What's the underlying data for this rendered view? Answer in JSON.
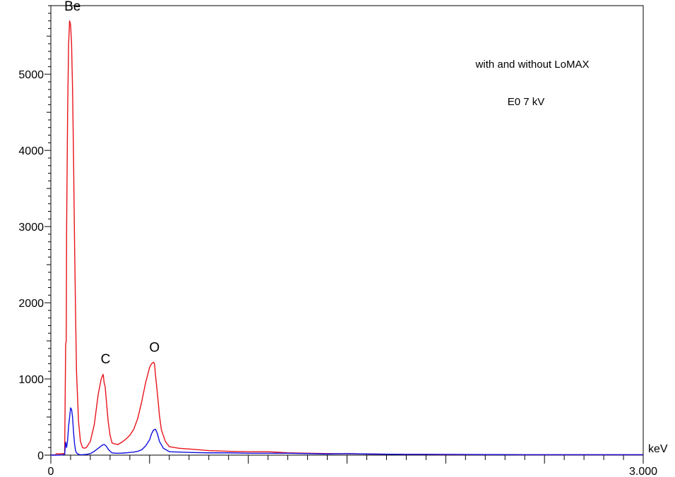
{
  "chart_data": {
    "type": "line",
    "title": "",
    "xlabel": "keV",
    "ylabel": "",
    "xlim": [
      0,
      3.0
    ],
    "ylim": [
      0,
      5900
    ],
    "x_tick_labels": [
      {
        "x": 0,
        "label": "0"
      },
      {
        "x": 3.0,
        "label": "3.000"
      }
    ],
    "y_tick_labels": [
      {
        "y": 0,
        "label": "0"
      },
      {
        "y": 1000,
        "label": "1000"
      },
      {
        "y": 2000,
        "label": "2000"
      },
      {
        "y": 3000,
        "label": "3000"
      },
      {
        "y": 4000,
        "label": "4000"
      },
      {
        "y": 5000,
        "label": "5000"
      }
    ],
    "grid": false,
    "annotations": [
      {
        "text": "with and without LoMAX"
      },
      {
        "text": "E0  7 kV"
      }
    ],
    "peak_labels": [
      {
        "text": "Be",
        "x": 0.11,
        "y": 5780
      },
      {
        "text": "C",
        "x": 0.277,
        "y": 1150
      },
      {
        "text": "O",
        "x": 0.525,
        "y": 1300
      }
    ],
    "series": [
      {
        "color": "#e8141c",
        "x": [
          0.0,
          0.01,
          0.02,
          0.03,
          0.04,
          0.06,
          0.07,
          0.075,
          0.078,
          0.08,
          0.085,
          0.09,
          0.095,
          0.1,
          0.105,
          0.11,
          0.115,
          0.12,
          0.125,
          0.13,
          0.14,
          0.15,
          0.16,
          0.17,
          0.18,
          0.2,
          0.22,
          0.24,
          0.255,
          0.265,
          0.27,
          0.275,
          0.28,
          0.285,
          0.29,
          0.3,
          0.31,
          0.32,
          0.34,
          0.36,
          0.38,
          0.4,
          0.42,
          0.44,
          0.46,
          0.48,
          0.5,
          0.51,
          0.52,
          0.525,
          0.53,
          0.54,
          0.55,
          0.56,
          0.58,
          0.6,
          0.65,
          0.7,
          0.8,
          0.9,
          1.0,
          1.1,
          1.2,
          1.3,
          1.4,
          1.5,
          1.6,
          1.7,
          1.8,
          1.9,
          2.0,
          2.2,
          2.4,
          2.6,
          2.8,
          3.0
        ],
        "y": [
          0,
          5,
          0,
          20,
          15,
          20,
          20,
          1450,
          1500,
          3000,
          4500,
          5400,
          5700,
          5650,
          5400,
          4800,
          3900,
          2800,
          1900,
          1100,
          450,
          180,
          100,
          90,
          100,
          180,
          400,
          800,
          1000,
          1060,
          950,
          900,
          750,
          600,
          450,
          260,
          160,
          150,
          140,
          170,
          210,
          260,
          340,
          480,
          700,
          950,
          1150,
          1200,
          1220,
          1200,
          1050,
          800,
          520,
          330,
          180,
          110,
          90,
          80,
          60,
          50,
          45,
          45,
          30,
          25,
          20,
          18,
          15,
          12,
          10,
          10,
          8,
          8,
          5,
          5,
          5,
          5
        ]
      },
      {
        "color": "#1010e0",
        "x": [
          0.0,
          0.02,
          0.04,
          0.06,
          0.07,
          0.075,
          0.08,
          0.085,
          0.09,
          0.095,
          0.1,
          0.105,
          0.11,
          0.115,
          0.12,
          0.125,
          0.13,
          0.14,
          0.15,
          0.16,
          0.18,
          0.2,
          0.22,
          0.24,
          0.26,
          0.27,
          0.28,
          0.29,
          0.3,
          0.31,
          0.33,
          0.35,
          0.38,
          0.4,
          0.42,
          0.44,
          0.46,
          0.48,
          0.5,
          0.51,
          0.52,
          0.53,
          0.54,
          0.55,
          0.57,
          0.6,
          0.65,
          0.7,
          0.8,
          0.9,
          1.0,
          1.2,
          1.4,
          1.5,
          1.6,
          1.8,
          2.0,
          2.2,
          2.4,
          2.6,
          2.8,
          3.0
        ],
        "y": [
          0,
          0,
          0,
          5,
          10,
          170,
          100,
          200,
          380,
          500,
          620,
          600,
          500,
          300,
          150,
          60,
          30,
          10,
          5,
          5,
          10,
          20,
          50,
          90,
          130,
          140,
          120,
          80,
          50,
          30,
          25,
          25,
          30,
          35,
          40,
          50,
          70,
          120,
          200,
          280,
          330,
          340,
          280,
          180,
          90,
          45,
          40,
          35,
          30,
          30,
          25,
          25,
          15,
          20,
          15,
          10,
          10,
          8,
          5,
          5,
          5,
          5
        ]
      }
    ]
  }
}
